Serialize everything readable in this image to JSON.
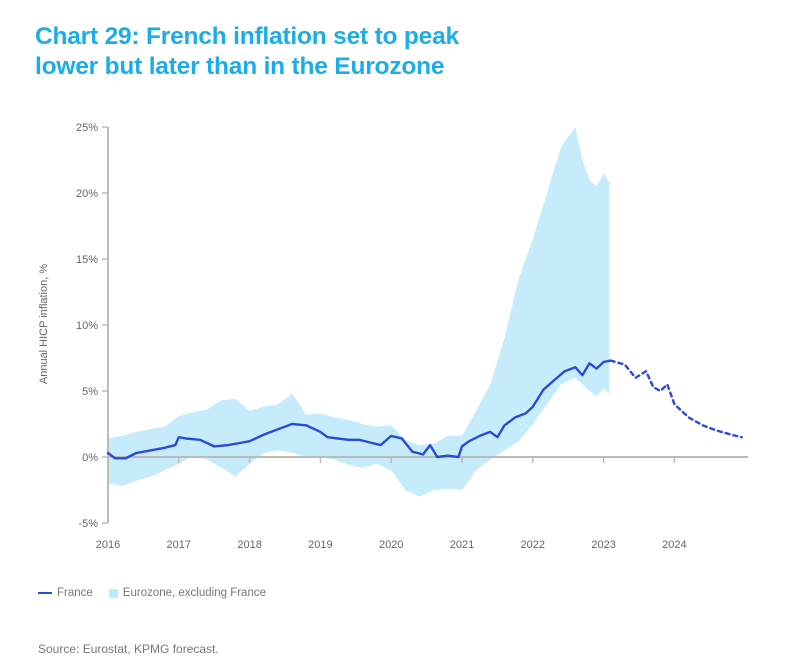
{
  "title_line1": "Chart 29: French inflation set to peak",
  "title_line2": "lower but later than in the Eurozone",
  "source": "Source: Eurostat, KPMG forecast.",
  "colors": {
    "title": "#1aaee8",
    "france": "#2a4bd7",
    "band": "#c6ecfc",
    "axis": "#bbbbbb"
  },
  "chart_data": {
    "type": "line",
    "title": "Chart 29: French inflation set to peak lower but later than in the Eurozone",
    "xlabel": "",
    "ylabel": "Annual HICP inflation, %",
    "ylim": [
      -5,
      25
    ],
    "xlim": [
      2016,
      2025
    ],
    "yticks": [
      -5,
      0,
      5,
      10,
      15,
      20,
      25
    ],
    "ytick_labels": [
      "-5%",
      "0%",
      "5%",
      "10%",
      "15%",
      "20%",
      "25%"
    ],
    "xticks": [
      2016,
      2017,
      2018,
      2019,
      2020,
      2021,
      2022,
      2023,
      2024
    ],
    "xtick_labels": [
      "2016",
      "2017",
      "2018",
      "2019",
      "2020",
      "2021",
      "2022",
      "2023",
      "2024"
    ],
    "grid": false,
    "legend": {
      "placement": "bottom-left",
      "entries": [
        "France",
        "Eurozone, excluding France"
      ]
    },
    "series": [
      {
        "name": "France",
        "style": "solid",
        "x": [
          2016.0,
          2016.1,
          2016.25,
          2016.4,
          2016.6,
          2016.8,
          2016.95,
          2017.0,
          2017.1,
          2017.3,
          2017.5,
          2017.7,
          2017.9,
          2018.0,
          2018.2,
          2018.4,
          2018.6,
          2018.8,
          2019.0,
          2019.1,
          2019.25,
          2019.4,
          2019.55,
          2019.7,
          2019.85,
          2020.0,
          2020.15,
          2020.3,
          2020.45,
          2020.55,
          2020.65,
          2020.8,
          2020.95,
          2021.0,
          2021.1,
          2021.25,
          2021.4,
          2021.5,
          2021.6,
          2021.75,
          2021.9,
          2022.0,
          2022.15,
          2022.3,
          2022.45,
          2022.6,
          2022.7,
          2022.8,
          2022.9,
          2023.0,
          2023.1
        ],
        "values": [
          0.3,
          -0.1,
          -0.1,
          0.3,
          0.5,
          0.7,
          0.9,
          1.5,
          1.4,
          1.3,
          0.8,
          0.9,
          1.1,
          1.2,
          1.7,
          2.1,
          2.5,
          2.4,
          1.9,
          1.5,
          1.4,
          1.3,
          1.3,
          1.1,
          0.9,
          1.6,
          1.4,
          0.4,
          0.2,
          0.9,
          0.0,
          0.1,
          0.0,
          0.8,
          1.2,
          1.6,
          1.9,
          1.5,
          2.4,
          3.0,
          3.3,
          3.8,
          5.1,
          5.8,
          6.5,
          6.8,
          6.2,
          7.1,
          6.7,
          7.2,
          7.3
        ]
      },
      {
        "name": "France (KPMG forecast)",
        "style": "dashed",
        "x": [
          2023.1,
          2023.3,
          2023.45,
          2023.6,
          2023.7,
          2023.8,
          2023.9,
          2024.0,
          2024.2,
          2024.4,
          2024.6,
          2024.8,
          2024.95
        ],
        "values": [
          7.3,
          7.0,
          6.0,
          6.5,
          5.3,
          5.0,
          5.5,
          4.0,
          3.0,
          2.4,
          2.0,
          1.7,
          1.5
        ]
      },
      {
        "name": "Eurozone, excluding France",
        "style": "band",
        "x": [
          2016.0,
          2016.2,
          2016.4,
          2016.6,
          2016.8,
          2017.0,
          2017.2,
          2017.4,
          2017.6,
          2017.8,
          2018.0,
          2018.2,
          2018.4,
          2018.6,
          2018.8,
          2019.0,
          2019.2,
          2019.4,
          2019.6,
          2019.8,
          2020.0,
          2020.2,
          2020.4,
          2020.6,
          2020.8,
          2021.0,
          2021.2,
          2021.4,
          2021.6,
          2021.8,
          2022.0,
          2022.2,
          2022.4,
          2022.6,
          2022.7,
          2022.8,
          2022.9,
          2023.0,
          2023.08
        ],
        "upper": [
          1.4,
          1.6,
          1.9,
          2.1,
          2.3,
          3.1,
          3.4,
          3.6,
          4.3,
          4.4,
          3.5,
          3.8,
          4.0,
          4.8,
          3.2,
          3.3,
          3.0,
          2.8,
          2.5,
          2.3,
          2.4,
          1.3,
          0.9,
          1.0,
          1.6,
          1.6,
          3.5,
          5.5,
          9.0,
          13.5,
          16.5,
          20.0,
          23.5,
          25.0,
          22.5,
          21.0,
          20.5,
          21.5,
          20.8
        ],
        "lower": [
          -2.0,
          -2.2,
          -1.8,
          -1.5,
          -1.0,
          -0.5,
          0.1,
          -0.2,
          -0.8,
          -1.5,
          -0.5,
          0.3,
          0.5,
          0.3,
          0.0,
          0.0,
          -0.2,
          -0.6,
          -0.8,
          -0.5,
          -1.0,
          -2.5,
          -3.0,
          -2.5,
          -2.4,
          -2.5,
          -1.0,
          -0.2,
          0.5,
          1.2,
          2.5,
          4.0,
          5.5,
          6.0,
          5.5,
          5.0,
          4.6,
          5.2,
          4.8
        ]
      }
    ]
  }
}
